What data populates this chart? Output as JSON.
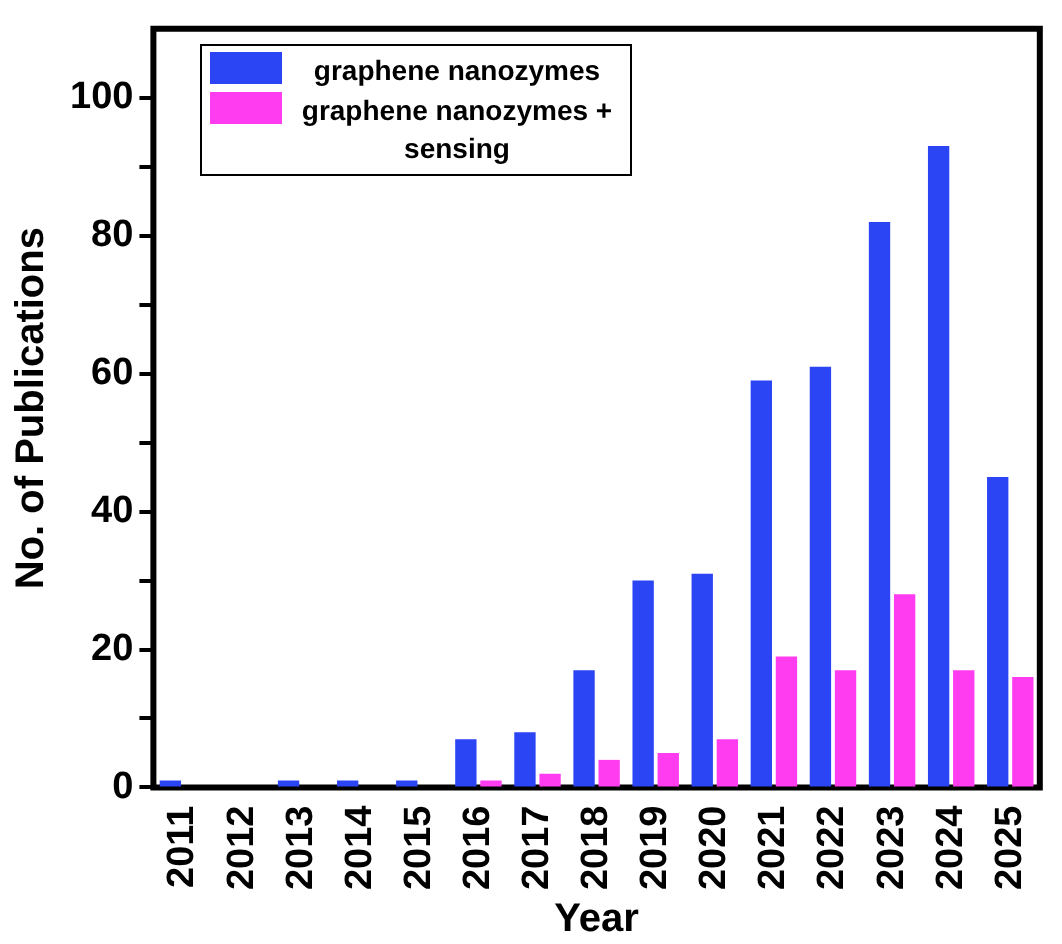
{
  "chart_data": {
    "type": "bar",
    "xlabel": "Year",
    "ylabel": "No. of Publications",
    "categories": [
      "2011",
      "2012",
      "2013",
      "2014",
      "2015",
      "2016",
      "2017",
      "2018",
      "2019",
      "2020",
      "2021",
      "2022",
      "2023",
      "2024",
      "2025"
    ],
    "series": [
      {
        "name": "graphene nanozymes",
        "color": "#2b45f5",
        "values": [
          1,
          0,
          1,
          1,
          1,
          7,
          8,
          17,
          30,
          31,
          59,
          61,
          82,
          93,
          45
        ]
      },
      {
        "name": "graphene nanozymes + sensing",
        "color": "#ff3cf0",
        "values": [
          0,
          0,
          0,
          0,
          0,
          1,
          2,
          4,
          5,
          7,
          19,
          17,
          28,
          17,
          16
        ]
      }
    ],
    "ylim": [
      0,
      110
    ],
    "yticks": [
      0,
      {
        "value": 10,
        "label": null
      },
      20,
      {
        "value": 30,
        "label": null
      },
      40,
      {
        "value": 50,
        "label": null
      },
      60,
      {
        "value": 70,
        "label": null
      },
      80,
      {
        "value": 90,
        "label": null
      },
      100
    ],
    "grid": false,
    "legend": "top left"
  }
}
